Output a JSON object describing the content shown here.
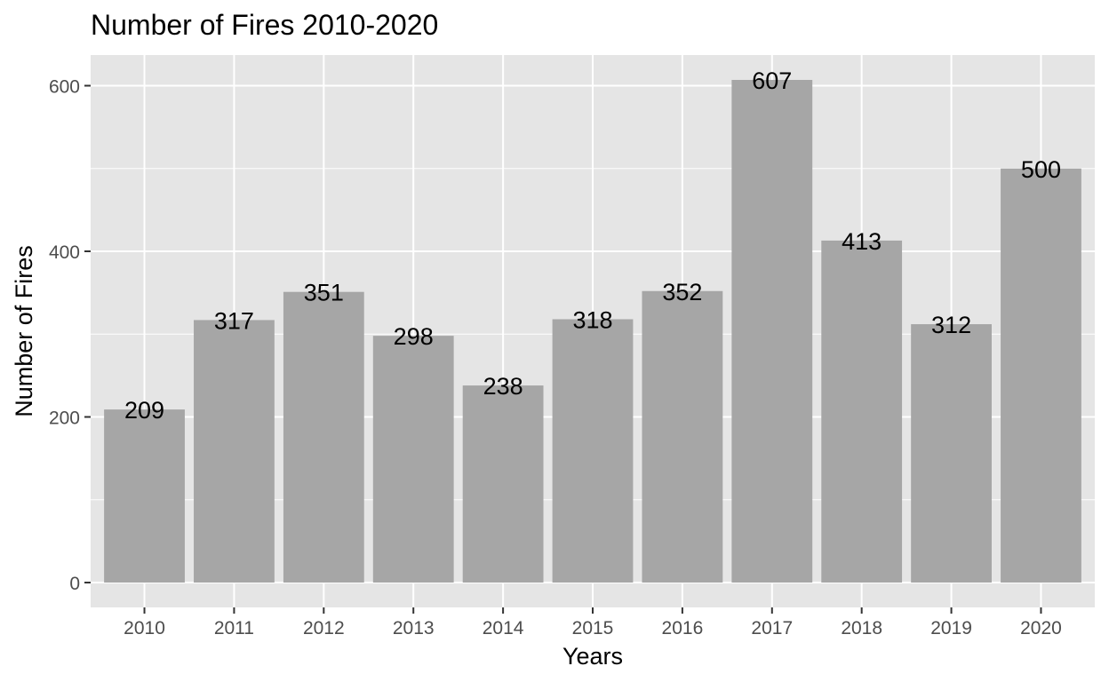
{
  "chart_data": {
    "type": "bar",
    "title": "Number of Fires 2010-2020",
    "xlabel": "Years",
    "ylabel": "Number of Fires",
    "categories": [
      "2010",
      "2011",
      "2012",
      "2013",
      "2014",
      "2015",
      "2016",
      "2017",
      "2018",
      "2019",
      "2020"
    ],
    "values": [
      209,
      317,
      351,
      298,
      238,
      318,
      352,
      607,
      413,
      312,
      500
    ],
    "data_labels": [
      "209",
      "317",
      "351",
      "298",
      "238",
      "318",
      "352",
      "607",
      "413",
      "312",
      "500"
    ],
    "ylim": [
      -30,
      637
    ],
    "yticks": [
      0,
      200,
      400,
      600
    ],
    "ytick_labels": [
      "0",
      "200",
      "400",
      "600"
    ],
    "grid": true,
    "legend": "none",
    "colors": {
      "panel_background": "#e5e5e5",
      "grid": "#ffffff",
      "bar": "#a6a6a6",
      "tick_text": "#4d4d4d",
      "axis_tick": "#333333",
      "text": "#000000"
    }
  }
}
